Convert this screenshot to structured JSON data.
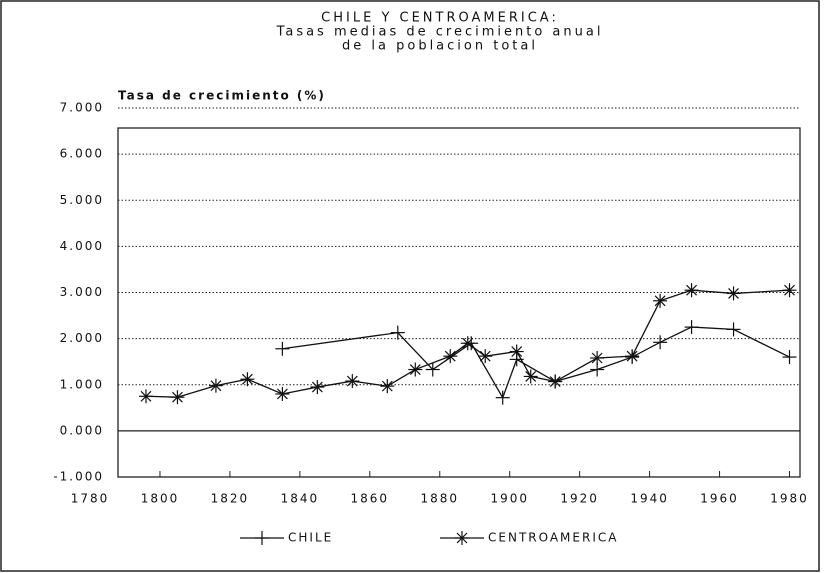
{
  "chart_data": {
    "type": "line",
    "title": [
      "CHILE Y CENTROAMERICA:",
      "Tasas medias de crecimiento anual",
      "de la poblacion total"
    ],
    "y_label": "Tasa de crecimiento (%)",
    "xlim": [
      1788,
      1983
    ],
    "xticks": [
      1780,
      1800,
      1820,
      1840,
      1860,
      1880,
      1900,
      1920,
      1940,
      1960,
      1980
    ],
    "ylim": [
      -1,
      7
    ],
    "yticks": [
      {
        "value": 7,
        "label": "7.000"
      },
      {
        "value": 6,
        "label": "6.000"
      },
      {
        "value": 5,
        "label": "5.000"
      },
      {
        "value": 4,
        "label": "4.000"
      },
      {
        "value": 3,
        "label": "3.000"
      },
      {
        "value": 2,
        "label": "2.000"
      },
      {
        "value": 1,
        "label": "1.000"
      },
      {
        "value": 0,
        "label": "0.000"
      },
      {
        "value": -1,
        "label": "-1.000"
      }
    ],
    "grid": true,
    "series": [
      {
        "name": "CHILE",
        "color": "#111111",
        "marker": "plus",
        "x": [
          1835,
          1868,
          1878,
          1889,
          1898,
          1902,
          1913,
          1925,
          1935,
          1943,
          1952,
          1964,
          1980
        ],
        "values": [
          1.78,
          2.13,
          1.33,
          1.9,
          0.72,
          1.55,
          1.07,
          1.33,
          1.6,
          1.92,
          2.25,
          2.2,
          1.6
        ]
      },
      {
        "name": "CENTROAMERICA",
        "color": "#111111",
        "marker": "star",
        "x": [
          1796,
          1805,
          1816,
          1825,
          1835,
          1845,
          1855,
          1865,
          1873,
          1883,
          1888,
          1893,
          1902,
          1906,
          1913,
          1925,
          1935,
          1943,
          1952,
          1964,
          1980
        ],
        "values": [
          0.75,
          0.73,
          0.98,
          1.12,
          0.8,
          0.95,
          1.08,
          0.97,
          1.33,
          1.62,
          1.9,
          1.62,
          1.72,
          1.18,
          1.07,
          1.58,
          1.62,
          2.82,
          3.05,
          2.98,
          3.05
        ]
      }
    ]
  }
}
